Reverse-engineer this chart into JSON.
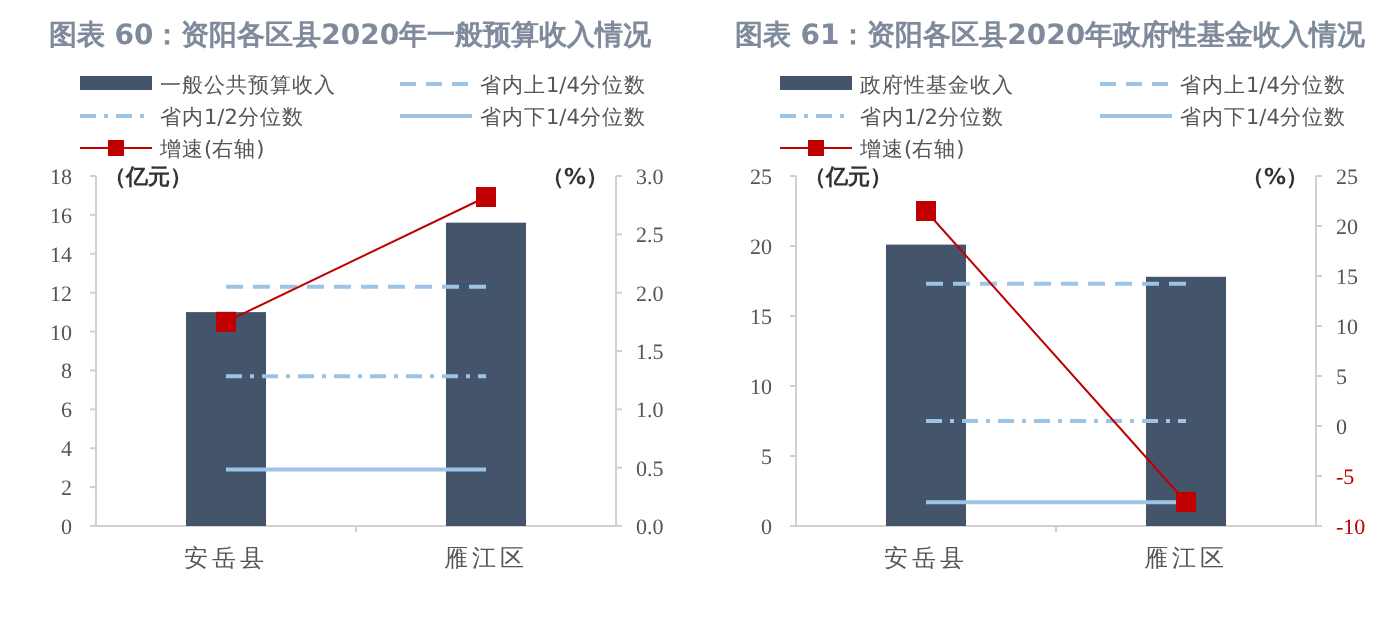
{
  "chart_data": [
    {
      "type": "bar",
      "title": "图表 60：资阳各区县2020年一般预算收入情况",
      "ylabel": "（亿元）",
      "y2label": "（%）",
      "categories": [
        "安岳县",
        "雁江区"
      ],
      "series": [
        {
          "name": "一般公共预算收入",
          "color": "#44546a",
          "values": [
            11.0,
            15.6
          ]
        },
        {
          "type": "line",
          "name": "省内上1/4分位数",
          "color": "#9dc3e6",
          "line_style": "dashed",
          "marker": "none",
          "values": [
            12.3,
            12.3
          ]
        },
        {
          "type": "line",
          "name": "省内1/2分位数",
          "color": "#9dc3e6",
          "line_style": "dashdot",
          "marker": "none",
          "values": [
            7.7,
            7.7
          ]
        },
        {
          "type": "line",
          "name": "省内下1/4分位数",
          "color": "#9dc3e6",
          "line_style": "solid",
          "marker": "none",
          "values": [
            2.9,
            2.9
          ]
        },
        {
          "type": "line",
          "name": "增速(右轴)",
          "color": "#c00000",
          "line_style": "solid",
          "marker": "square",
          "axis": "y2",
          "values": [
            1.75,
            2.82
          ]
        }
      ],
      "ylim": [
        0,
        18
      ],
      "yticks": [
        0,
        2,
        4,
        6,
        8,
        10,
        12,
        14,
        16,
        18
      ],
      "y2lim": [
        0,
        3
      ],
      "y2ticks": [
        {
          "value": 0,
          "label": "0.0"
        },
        {
          "value": 0.5,
          "label": "0.5"
        },
        {
          "value": 1,
          "label": "1.0"
        },
        {
          "value": 1.5,
          "label": "1.5"
        },
        {
          "value": 2,
          "label": "2.0"
        },
        {
          "value": 2.5,
          "label": "2.5"
        },
        {
          "value": 3,
          "label": "3.0"
        }
      ],
      "legend": "top",
      "grid": false
    },
    {
      "type": "bar",
      "title": "图表 61：资阳各区县2020年政府性基金收入情况",
      "ylabel": "（亿元）",
      "y2label": "（%）",
      "categories": [
        "安岳县",
        "雁江区"
      ],
      "series": [
        {
          "name": "政府性基金收入",
          "color": "#44546a",
          "values": [
            20.1,
            17.8
          ]
        },
        {
          "type": "line",
          "name": "省内上1/4分位数",
          "color": "#9dc3e6",
          "line_style": "dashed",
          "marker": "none",
          "values": [
            17.3,
            17.3
          ]
        },
        {
          "type": "line",
          "name": "省内1/2分位数",
          "color": "#9dc3e6",
          "line_style": "dashdot",
          "marker": "none",
          "values": [
            7.5,
            7.5
          ]
        },
        {
          "type": "line",
          "name": "省内下1/4分位数",
          "color": "#9dc3e6",
          "line_style": "solid",
          "marker": "none",
          "values": [
            1.7,
            1.7
          ]
        },
        {
          "type": "line",
          "name": "增速(右轴)",
          "color": "#c00000",
          "line_style": "solid",
          "marker": "square",
          "axis": "y2",
          "values": [
            21.5,
            -7.6
          ]
        }
      ],
      "ylim": [
        0,
        25
      ],
      "yticks": [
        0,
        5,
        10,
        15,
        20,
        25
      ],
      "y2lim": [
        -10,
        25
      ],
      "y2ticks": [
        -10,
        -5,
        0,
        5,
        10,
        15,
        20,
        25
      ],
      "legend": "top",
      "grid": false
    }
  ]
}
